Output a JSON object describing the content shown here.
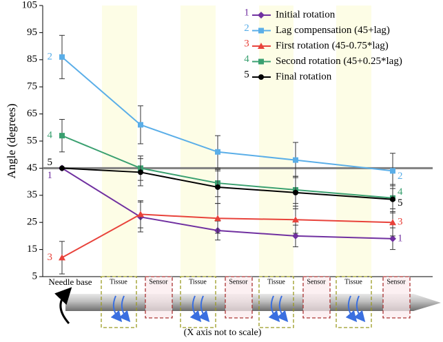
{
  "chart_data": {
    "type": "line",
    "y_label": "Angle (degrees)",
    "categories": [
      null,
      null,
      null,
      null,
      null
    ],
    "ylim": [
      5,
      105
    ],
    "yticks": [
      5,
      15,
      25,
      35,
      45,
      55,
      65,
      75,
      85,
      95,
      105
    ],
    "reference_line": 45,
    "reference_color": "#7f7f7f",
    "series": [
      {
        "number": "1",
        "name": "Initial rotation",
        "color": "#7030a0",
        "marker": "diamond",
        "values": [
          45,
          27,
          22,
          20,
          19
        ],
        "errors": [
          null,
          5.5,
          3.5,
          4,
          4
        ]
      },
      {
        "number": "2",
        "name": "Lag compensation (45+lag)",
        "color": "#5aaee8",
        "marker": "square",
        "values": [
          86,
          61,
          51,
          48,
          44
        ],
        "errors": [
          8,
          7,
          6,
          6.5,
          6.5
        ]
      },
      {
        "number": "3",
        "name": "First rotation (45-0.75*lag)",
        "color": "#e8423a",
        "marker": "triangle",
        "values": [
          12,
          28,
          26.5,
          26,
          25
        ],
        "errors": [
          6,
          5,
          5.5,
          5,
          5
        ]
      },
      {
        "number": "4",
        "name": "Second rotation (45+0.25*lag)",
        "color": "#3aa070",
        "marker": "square",
        "values": [
          57,
          45,
          39.5,
          37,
          34
        ],
        "errors": [
          6,
          4.5,
          5,
          5,
          5
        ]
      },
      {
        "number": "5",
        "name": "Final rotation",
        "color": "#000000",
        "marker": "circle",
        "values": [
          45,
          43.5,
          38,
          36,
          33.5
        ],
        "errors": [
          null,
          5,
          6,
          6,
          5
        ]
      }
    ]
  },
  "diagram": {
    "base_label": "Needle base",
    "tissue_label": "Tissue",
    "sensor_label": "Sensor",
    "note": "(X axis not to scale)"
  }
}
